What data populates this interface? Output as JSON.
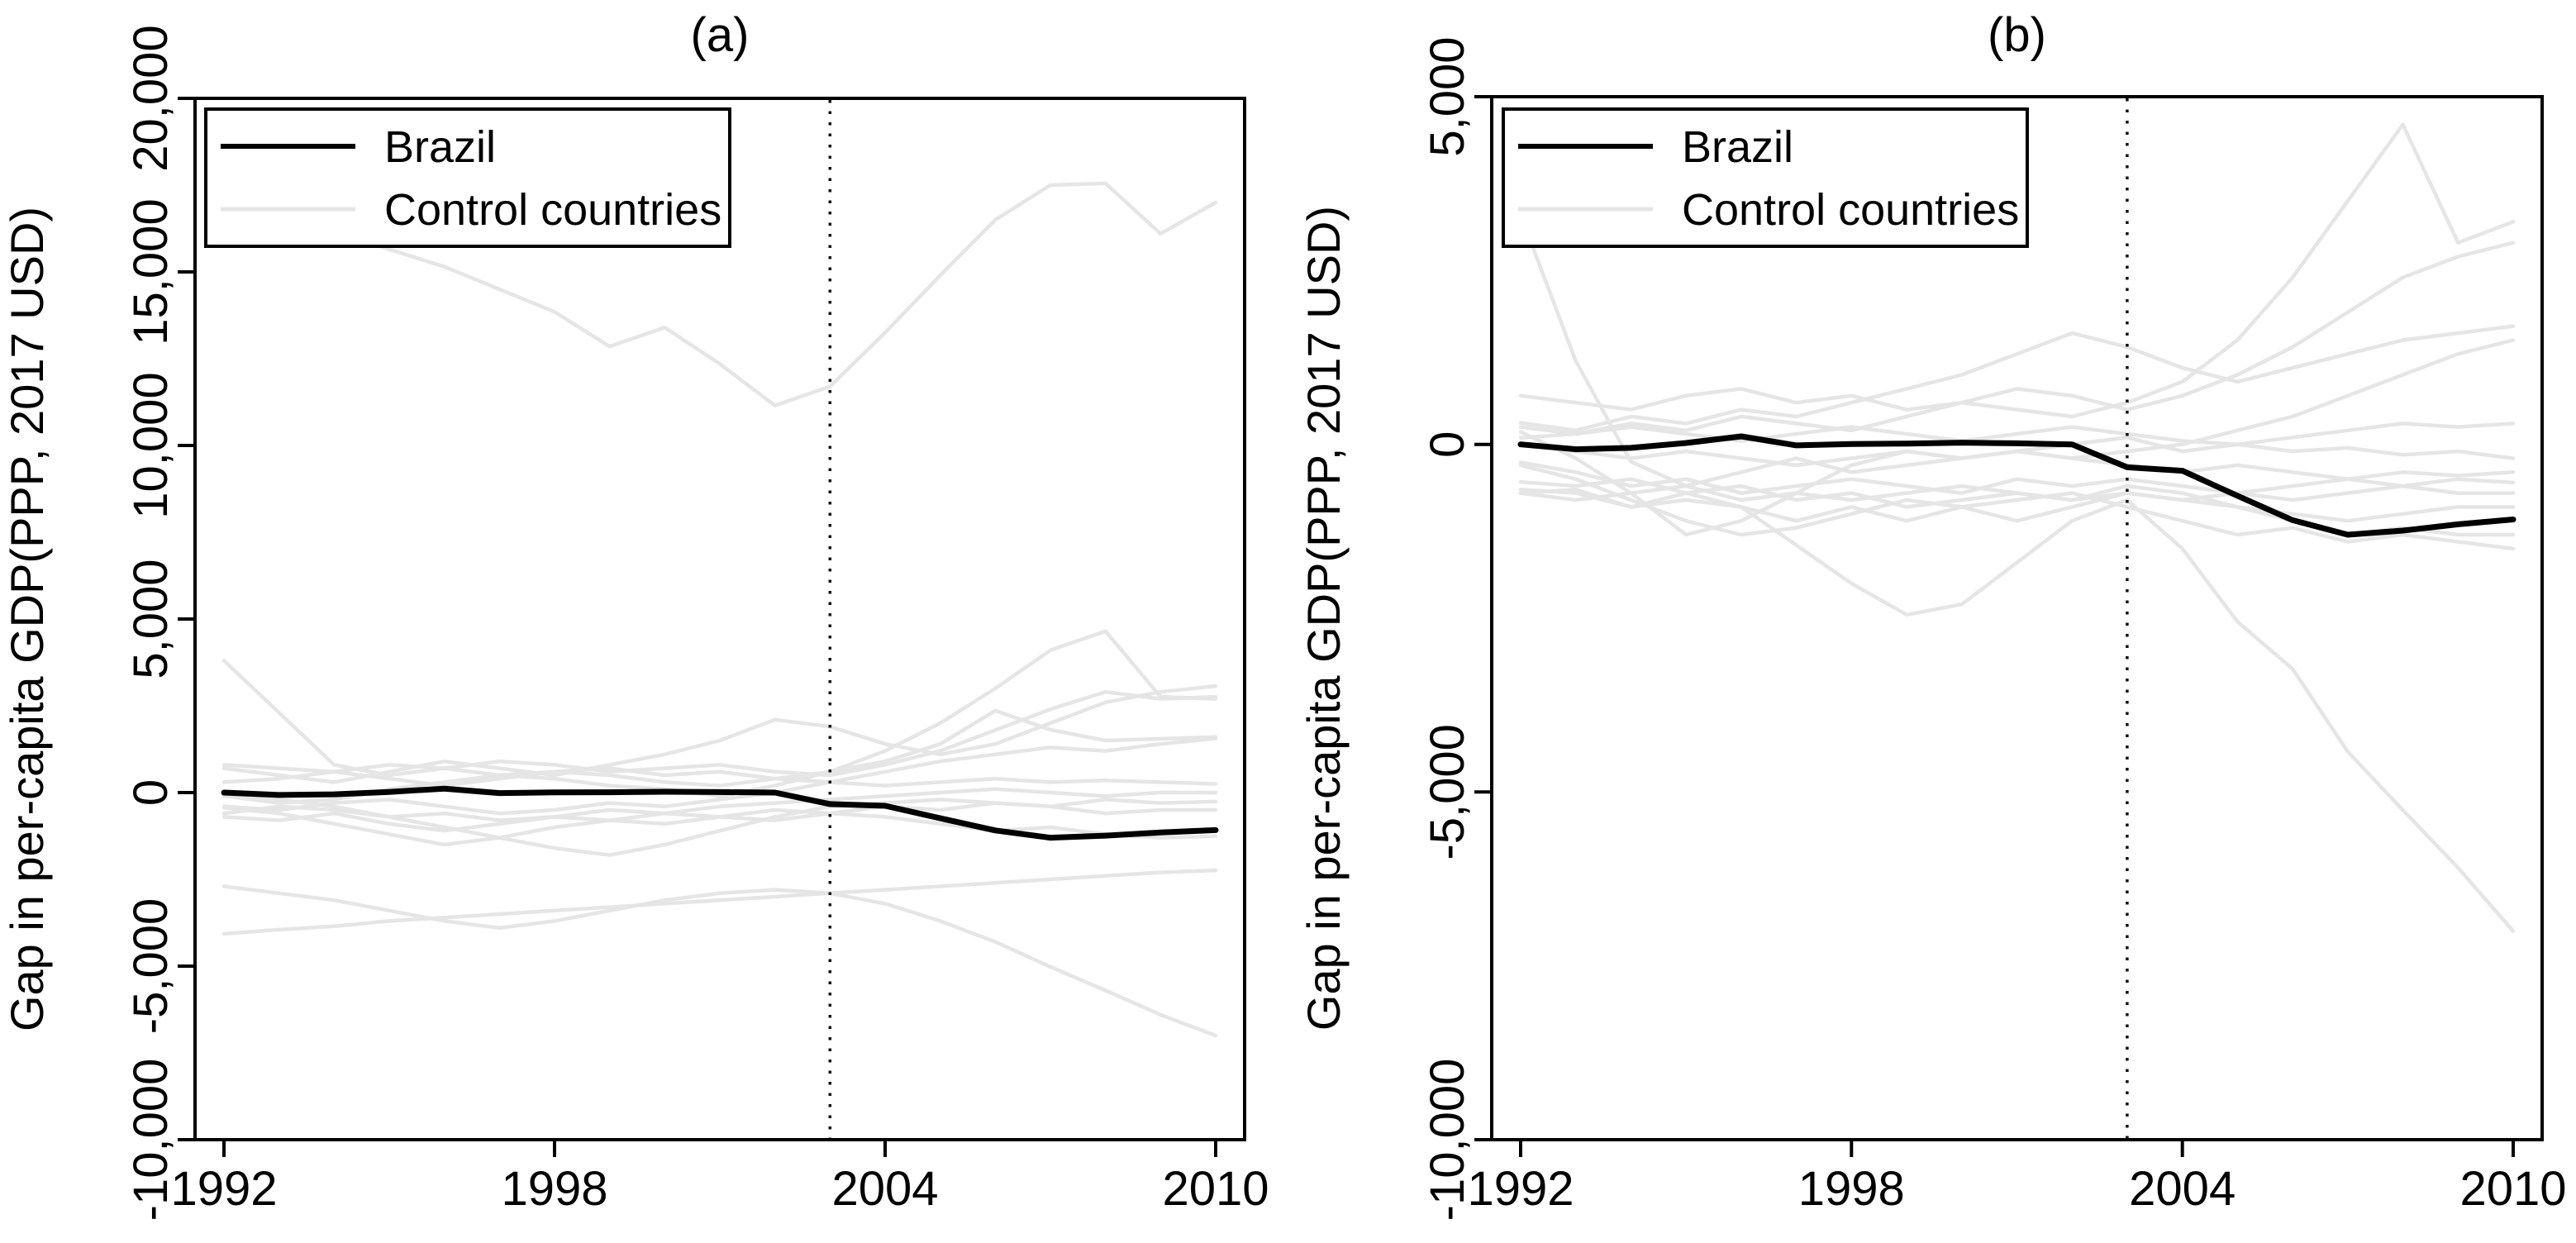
{
  "figure": {
    "background": "#ffffff",
    "treated_color": "#000000",
    "control_color": "#e5e5e5",
    "panel_titles": [
      "(a)",
      "(b)"
    ]
  },
  "chart_data": [
    {
      "type": "line",
      "title": "(a)",
      "xlabel": "",
      "ylabel": "Gap in per-capita GDP(PPP, 2017 USD)",
      "grid": false,
      "legend_position": "top-left",
      "legend": [
        {
          "label": "Brazil",
          "color": "#000000"
        },
        {
          "label": "Control countries",
          "color": "#e5e5e5"
        }
      ],
      "x": [
        1992,
        1993,
        1994,
        1995,
        1996,
        1997,
        1998,
        1999,
        2000,
        2001,
        2002,
        2003,
        2004,
        2005,
        2006,
        2007,
        2008,
        2009,
        2010
      ],
      "xticks": [
        1992,
        1998,
        2004,
        2010
      ],
      "xtick_labels": [
        "1992",
        "1998",
        "2004",
        "2010"
      ],
      "yticks": [
        20000,
        15000,
        10000,
        5000,
        0,
        -5000,
        -10000
      ],
      "ytick_labels": [
        "20,000",
        "15,000",
        "10,000",
        "5,000",
        "0",
        "-5,000",
        "-10,000"
      ],
      "xlim": [
        1991.475,
        2010.525
      ],
      "ylim": [
        -10000,
        20000
      ],
      "vline_x": 2003,
      "series": [
        {
          "name": "Brazil",
          "role": "treated",
          "values": [
            0,
            -70,
            -50,
            20,
            115,
            -15,
            5,
            10,
            25,
            15,
            0,
            -330,
            -380,
            -740,
            -1090,
            -1300,
            -1240,
            -1150,
            -1080
          ]
        },
        {
          "name": "control-1",
          "role": "control",
          "values": [
            17200,
            16700,
            16150,
            15650,
            15150,
            14500,
            13850,
            12850,
            13400,
            12350,
            11150,
            11700,
            13250,
            14900,
            16500,
            17500,
            17550,
            16100,
            17000
          ]
        },
        {
          "name": "control-2",
          "role": "control",
          "values": [
            3800,
            2300,
            800,
            500,
            700,
            900,
            800,
            600,
            700,
            800,
            600,
            500,
            800,
            1200,
            1800,
            2400,
            2900,
            2700,
            2760
          ]
        },
        {
          "name": "control-3",
          "role": "control",
          "values": [
            700,
            500,
            300,
            600,
            900,
            700,
            500,
            800,
            1100,
            1500,
            2100,
            1900,
            1400,
            1100,
            1400,
            2000,
            2600,
            2900,
            3070
          ]
        },
        {
          "name": "control-4",
          "role": "control",
          "values": [
            -100,
            -300,
            -200,
            100,
            300,
            500,
            400,
            200,
            100,
            -100,
            200,
            600,
            1200,
            2000,
            3000,
            4100,
            4650,
            2760,
            2700
          ]
        },
        {
          "name": "control-5",
          "role": "control",
          "values": [
            300,
            400,
            600,
            400,
            200,
            400,
            600,
            500,
            300,
            200,
            400,
            600,
            900,
            1400,
            2360,
            1810,
            1500,
            1550,
            1600
          ]
        },
        {
          "name": "control-6",
          "role": "control",
          "values": [
            -400,
            -500,
            -300,
            -200,
            -400,
            -600,
            -500,
            -300,
            -400,
            -200,
            0,
            300,
            600,
            900,
            1100,
            1300,
            1200,
            1400,
            1560
          ]
        },
        {
          "name": "control-7",
          "role": "control",
          "values": [
            800,
            700,
            600,
            800,
            700,
            500,
            600,
            700,
            500,
            600,
            400,
            300,
            200,
            300,
            400,
            300,
            350,
            300,
            250
          ]
        },
        {
          "name": "control-8",
          "role": "control",
          "values": [
            -600,
            -400,
            -500,
            -700,
            -600,
            -800,
            -700,
            -500,
            -600,
            -400,
            -300,
            -200,
            -100,
            0,
            100,
            0,
            -100,
            0,
            0
          ]
        },
        {
          "name": "control-9",
          "role": "control",
          "values": [
            -100,
            -200,
            -400,
            -700,
            -1000,
            -1300,
            -1600,
            -1800,
            -1500,
            -1100,
            -700,
            -400,
            -300,
            -200,
            -300,
            -400,
            -200,
            -300,
            -260
          ]
        },
        {
          "name": "control-10",
          "role": "control",
          "values": [
            -700,
            -800,
            -600,
            -900,
            -1100,
            -900,
            -700,
            -800,
            -600,
            -700,
            -500,
            -600,
            -400,
            -500,
            -300,
            -400,
            -600,
            -500,
            -500
          ]
        },
        {
          "name": "control-11",
          "role": "control",
          "values": [
            -430,
            -600,
            -900,
            -1200,
            -1500,
            -1300,
            -1000,
            -800,
            -900,
            -700,
            -800,
            -600,
            -700,
            -900,
            -1100,
            -1000,
            -1200,
            -1300,
            -1260
          ]
        },
        {
          "name": "control-12",
          "role": "control",
          "values": [
            -2700,
            -2900,
            -3100,
            -3400,
            -3700,
            -3900,
            -3700,
            -3400,
            -3100,
            -2900,
            -2800,
            -2900,
            -3200,
            -3700,
            -4300,
            -5020,
            -5700,
            -6400,
            -7000
          ]
        },
        {
          "name": "control-13",
          "role": "control",
          "values": [
            -4070,
            -3950,
            -3850,
            -3700,
            -3600,
            -3500,
            -3400,
            -3300,
            -3200,
            -3100,
            -3000,
            -2900,
            -2800,
            -2700,
            -2600,
            -2500,
            -2400,
            -2300,
            -2240
          ]
        }
      ]
    },
    {
      "type": "line",
      "title": "(b)",
      "xlabel": "",
      "ylabel": "Gap in per-capita GDP(PPP, 2017 USD)",
      "grid": false,
      "legend_position": "top-left",
      "legend": [
        {
          "label": "Brazil",
          "color": "#000000"
        },
        {
          "label": "Control countries",
          "color": "#e5e5e5"
        }
      ],
      "x": [
        1992,
        1993,
        1994,
        1995,
        1996,
        1997,
        1998,
        1999,
        2000,
        2001,
        2002,
        2003,
        2004,
        2005,
        2006,
        2007,
        2008,
        2009,
        2010
      ],
      "xticks": [
        1992,
        1998,
        2004,
        2010
      ],
      "xtick_labels": [
        "1992",
        "1998",
        "2004",
        "2010"
      ],
      "yticks": [
        5000,
        0,
        -5000,
        -10000
      ],
      "ytick_labels": [
        "5,000",
        "0",
        "-5,000",
        "-10,000"
      ],
      "xlim": [
        1991.475,
        2010.525
      ],
      "ylim": [
        -10000,
        5000
      ],
      "vline_x": 2003,
      "series": [
        {
          "name": "Brazil",
          "role": "treated",
          "values": [
            0,
            -70,
            -50,
            20,
            115,
            -15,
            5,
            10,
            25,
            15,
            0,
            -330,
            -380,
            -740,
            -1090,
            -1300,
            -1240,
            -1150,
            -1080
          ]
        },
        {
          "name": "control-1",
          "role": "control",
          "values": [
            3300,
            1200,
            -250,
            -600,
            -400,
            -200,
            -400,
            -300,
            -200,
            -100,
            -200,
            -100,
            0,
            200,
            400,
            700,
            1000,
            1300,
            1500
          ]
        },
        {
          "name": "control-2",
          "role": "control",
          "values": [
            250,
            150,
            300,
            200,
            400,
            300,
            200,
            400,
            600,
            500,
            400,
            600,
            900,
            1500,
            2400,
            3500,
            4600,
            2900,
            3200
          ]
        },
        {
          "name": "control-3",
          "role": "control",
          "values": [
            700,
            600,
            500,
            700,
            800,
            600,
            700,
            500,
            600,
            800,
            700,
            500,
            700,
            1000,
            1400,
            1900,
            2400,
            2700,
            2900
          ]
        },
        {
          "name": "control-4",
          "role": "control",
          "values": [
            310,
            200,
            400,
            300,
            500,
            400,
            600,
            800,
            1000,
            1300,
            1600,
            1400,
            1100,
            900,
            1100,
            1300,
            1500,
            1600,
            1700
          ]
        },
        {
          "name": "control-5",
          "role": "control",
          "values": [
            180,
            -200,
            -700,
            -1300,
            -1100,
            -700,
            -300,
            -100,
            -200,
            -100,
            0,
            100,
            -100,
            0,
            100,
            200,
            300,
            250,
            300
          ]
        },
        {
          "name": "control-6",
          "role": "control",
          "values": [
            95,
            150,
            250,
            150,
            50,
            150,
            250,
            150,
            50,
            150,
            250,
            150,
            50,
            0,
            -100,
            -50,
            -150,
            -100,
            -200
          ]
        },
        {
          "name": "control-7",
          "role": "control",
          "values": [
            0,
            -100,
            -200,
            -100,
            -200,
            -300,
            -200,
            -100,
            -200,
            -100,
            -200,
            -300,
            -400,
            -300,
            -400,
            -500,
            -400,
            -450,
            -400
          ]
        },
        {
          "name": "control-8",
          "role": "control",
          "values": [
            -700,
            -650,
            -900,
            -800,
            -900,
            -1450,
            -2000,
            -2450,
            -2300,
            -1700,
            -1100,
            -800,
            -1500,
            -2550,
            -3230,
            -4420,
            -5260,
            -6090,
            -7000
          ]
        },
        {
          "name": "control-9",
          "role": "control",
          "values": [
            -260,
            -400,
            -600,
            -500,
            -700,
            -600,
            -500,
            -600,
            -700,
            -500,
            -600,
            -500,
            -600,
            -700,
            -800,
            -700,
            -600,
            -700,
            -700
          ]
        },
        {
          "name": "control-10",
          "role": "control",
          "values": [
            -300,
            -500,
            -800,
            -1100,
            -1300,
            -1200,
            -1000,
            -800,
            -900,
            -1100,
            -900,
            -700,
            -800,
            -900,
            -1000,
            -1100,
            -1000,
            -900,
            -900
          ]
        },
        {
          "name": "control-11",
          "role": "control",
          "values": [
            -540,
            -600,
            -500,
            -700,
            -600,
            -800,
            -700,
            -900,
            -800,
            -700,
            -800,
            -600,
            -700,
            -900,
            -1100,
            -1300,
            -1200,
            -1300,
            -1300
          ]
        },
        {
          "name": "control-12",
          "role": "control",
          "values": [
            -650,
            -700,
            -900,
            -700,
            -900,
            -1100,
            -900,
            -1100,
            -900,
            -800,
            -700,
            -900,
            -1100,
            -1300,
            -1200,
            -1400,
            -1300,
            -1400,
            -1500
          ]
        },
        {
          "name": "control-13",
          "role": "control",
          "values": [
            -700,
            -800,
            -700,
            -600,
            -800,
            -700,
            -800,
            -700,
            -600,
            -700,
            -800,
            -700,
            -800,
            -700,
            -600,
            -500,
            -600,
            -500,
            -550
          ]
        }
      ]
    }
  ]
}
